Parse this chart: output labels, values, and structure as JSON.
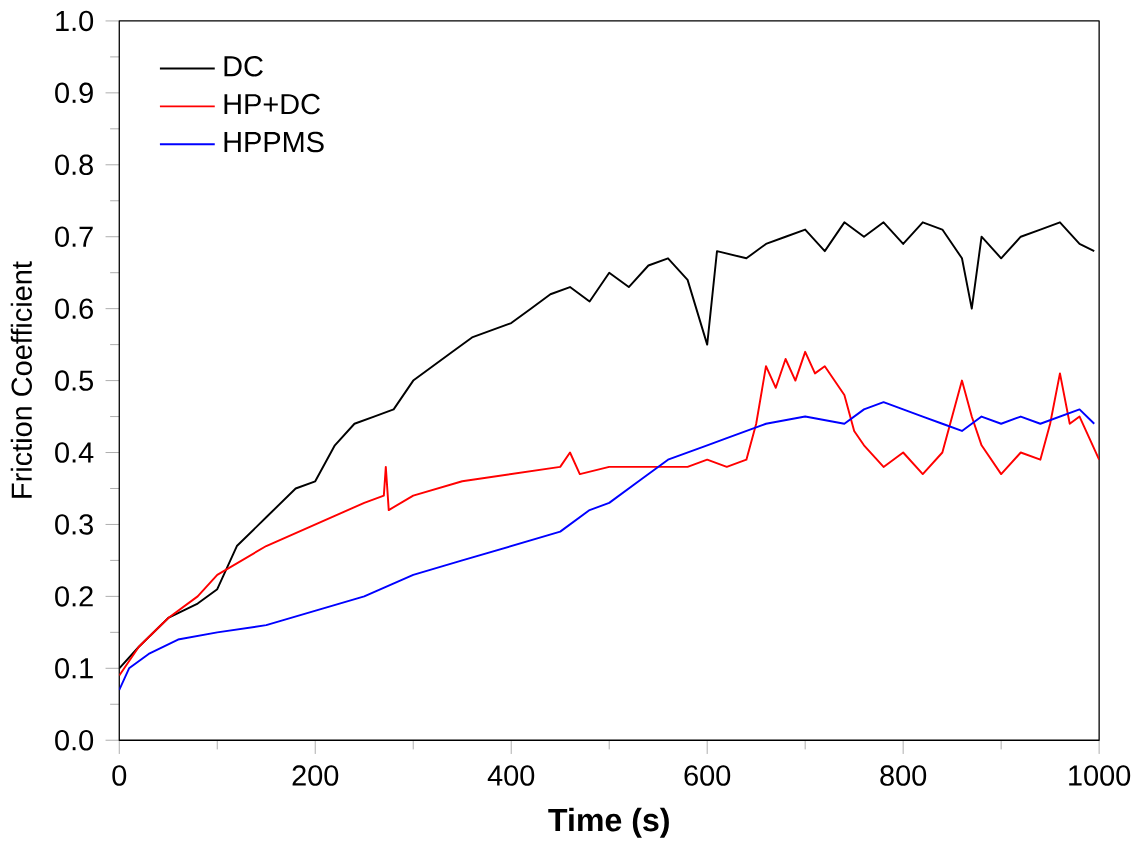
{
  "chart_data": {
    "type": "line",
    "xlabel": "Time (s)",
    "ylabel": "Friction Coefficient",
    "xlim": [
      0,
      1000
    ],
    "ylim": [
      0,
      1
    ],
    "xticks": [
      0,
      200,
      400,
      600,
      800,
      1000
    ],
    "yticks": [
      {
        "value": 0,
        "label": "0.0"
      },
      {
        "value": 0.1,
        "label": "0.1"
      },
      {
        "value": 0.2,
        "label": "0.2"
      },
      {
        "value": 0.3,
        "label": "0.3"
      },
      {
        "value": 0.4,
        "label": "0.4"
      },
      {
        "value": 0.5,
        "label": "0.5"
      },
      {
        "value": 0.6,
        "label": "0.6"
      },
      {
        "value": 0.7,
        "label": "0.7"
      },
      {
        "value": 0.8,
        "label": "0.8"
      },
      {
        "value": 0.9,
        "label": "0.9"
      },
      {
        "value": 1,
        "label": "1.0"
      }
    ],
    "legend": "top left",
    "marker": "none",
    "line_style": "solid",
    "grid": false,
    "x": [
      0,
      20,
      50,
      80,
      100,
      120,
      150,
      180,
      200,
      220,
      240,
      260,
      280,
      300,
      320,
      340,
      360,
      380,
      400,
      420,
      440,
      460,
      480,
      500,
      520,
      540,
      560,
      580,
      600,
      610,
      640,
      660,
      680,
      700,
      720,
      740,
      760,
      780,
      800,
      820,
      840,
      860,
      870,
      880,
      900,
      920,
      940,
      960,
      980,
      995
    ],
    "series": [
      {
        "name": "DC",
        "color": "#000000",
        "values": [
          0.1,
          0.13,
          0.17,
          0.19,
          0.21,
          0.27,
          0.31,
          0.35,
          0.36,
          0.41,
          0.44,
          0.45,
          0.46,
          0.5,
          0.52,
          0.54,
          0.56,
          0.57,
          0.58,
          0.6,
          0.62,
          0.63,
          0.61,
          0.65,
          0.63,
          0.66,
          0.67,
          0.64,
          0.55,
          0.68,
          0.67,
          0.69,
          0.7,
          0.71,
          0.68,
          0.72,
          0.7,
          0.72,
          0.69,
          0.72,
          0.71,
          0.67,
          0.6,
          0.7,
          0.67,
          0.7,
          0.71,
          0.72,
          0.69,
          0.68
        ]
      },
      {
        "name": "HP+DC",
        "color": "#ff0000",
        "x": [
          0,
          20,
          50,
          80,
          100,
          150,
          200,
          250,
          270,
          272,
          275,
          300,
          350,
          400,
          450,
          460,
          470,
          500,
          550,
          580,
          600,
          620,
          640,
          650,
          660,
          670,
          680,
          690,
          700,
          710,
          720,
          740,
          750,
          760,
          780,
          800,
          820,
          840,
          860,
          870,
          880,
          900,
          920,
          940,
          950,
          960,
          970,
          980,
          990,
          1000
        ],
        "values": [
          0.09,
          0.13,
          0.17,
          0.2,
          0.23,
          0.27,
          0.3,
          0.33,
          0.34,
          0.38,
          0.32,
          0.34,
          0.36,
          0.37,
          0.38,
          0.4,
          0.37,
          0.38,
          0.38,
          0.38,
          0.39,
          0.38,
          0.39,
          0.44,
          0.52,
          0.49,
          0.53,
          0.5,
          0.54,
          0.51,
          0.52,
          0.48,
          0.43,
          0.41,
          0.38,
          0.4,
          0.37,
          0.4,
          0.5,
          0.45,
          0.41,
          0.37,
          0.4,
          0.39,
          0.44,
          0.51,
          0.44,
          0.45,
          0.42,
          0.39
        ]
      },
      {
        "name": "HPPMS",
        "color": "#0000ff",
        "x": [
          0,
          10,
          30,
          60,
          100,
          150,
          200,
          250,
          300,
          350,
          400,
          450,
          480,
          500,
          530,
          560,
          600,
          620,
          640,
          660,
          700,
          740,
          760,
          780,
          800,
          820,
          840,
          860,
          880,
          900,
          920,
          940,
          960,
          980,
          995
        ],
        "values": [
          0.07,
          0.1,
          0.12,
          0.14,
          0.15,
          0.16,
          0.18,
          0.2,
          0.23,
          0.25,
          0.27,
          0.29,
          0.32,
          0.33,
          0.36,
          0.39,
          0.41,
          0.42,
          0.43,
          0.44,
          0.45,
          0.44,
          0.46,
          0.47,
          0.46,
          0.45,
          0.44,
          0.43,
          0.45,
          0.44,
          0.45,
          0.44,
          0.45,
          0.46,
          0.44
        ]
      }
    ]
  }
}
